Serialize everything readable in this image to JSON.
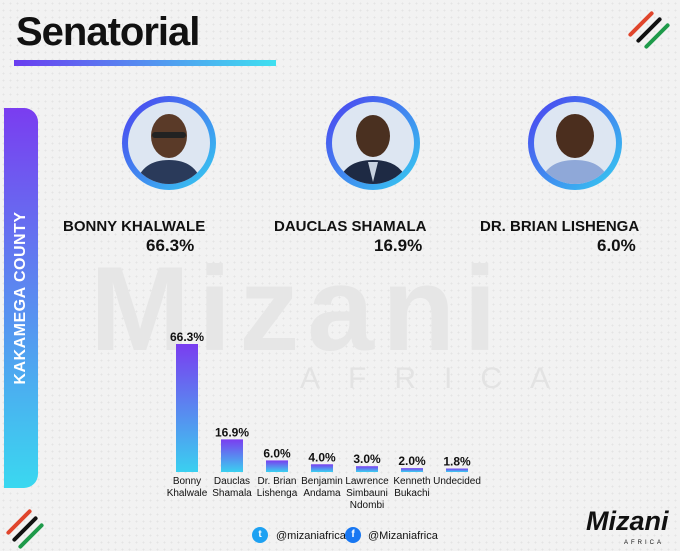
{
  "title": "Senatorial",
  "county": "KAKAMEGA COUNTY",
  "candidates": [
    {
      "name": "BONNY KHALWALE",
      "pct": "66.3%"
    },
    {
      "name": "DAUCLAS SHAMALA",
      "pct": "16.9%"
    },
    {
      "name": "DR. BRIAN LISHENGA",
      "pct": "6.0%"
    }
  ],
  "colors": {
    "bar_top": "#7a3df0",
    "bar_bottom": "#3ad0f0",
    "accent_red": "#e0452c",
    "accent_green": "#1e9a4a"
  },
  "chart_data": {
    "type": "bar",
    "categories": [
      [
        "Bonny",
        "Khalwale"
      ],
      [
        "Dauclas",
        "Shamala"
      ],
      [
        "Dr. Brian",
        "Lishenga"
      ],
      [
        "Benjamin",
        "Andama"
      ],
      [
        "Lawrence",
        "Simbauni",
        "Ndombi"
      ],
      [
        "Kenneth",
        "Bukachi"
      ],
      [
        "Undecided"
      ]
    ],
    "values": [
      66.3,
      16.9,
      6.0,
      4.0,
      3.0,
      2.0,
      1.8
    ],
    "value_labels": [
      "66.3%",
      "16.9%",
      "6.0%",
      "4.0%",
      "3.0%",
      "2.0%",
      "1.8%"
    ],
    "ylim": [
      0,
      66.3
    ]
  },
  "footer": {
    "twitter": "@mizaniafrica",
    "facebook": "@Mizaniafrica"
  },
  "logo": {
    "text": "Mizani",
    "sub": "AFRICA"
  },
  "watermark": {
    "text": "Mizani",
    "sub": "AFRICA"
  }
}
